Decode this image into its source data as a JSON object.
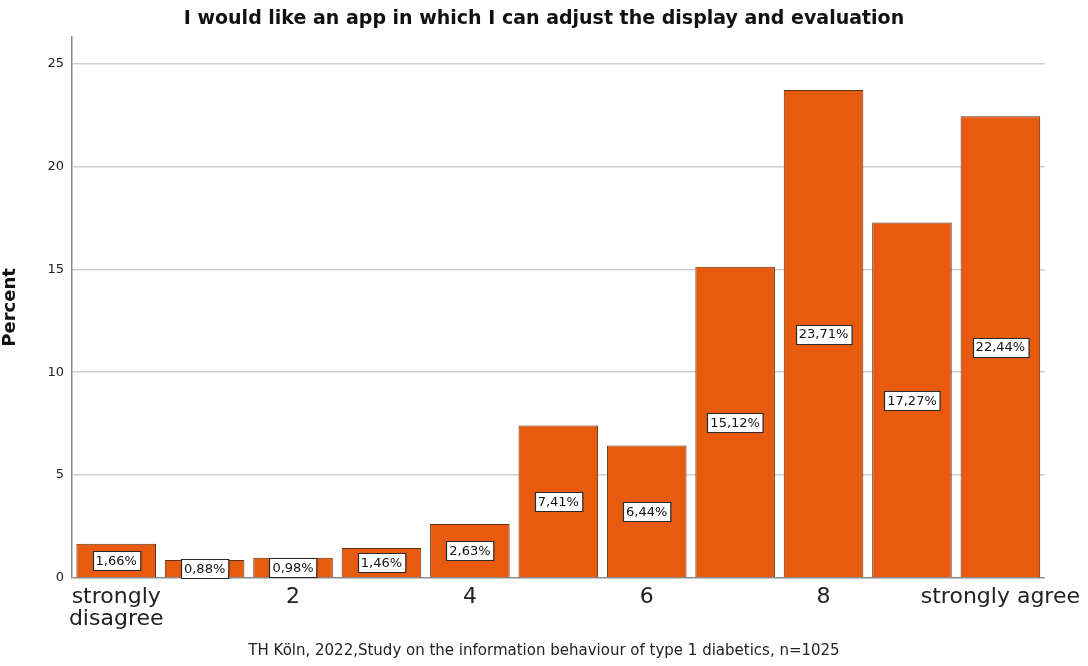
{
  "chart_data": {
    "type": "bar",
    "title": "I would like an app in which I can adjust the display and evaluation",
    "ylabel": "Percent",
    "annotations": [
      "TH Köln, 2022,Study on the information behaviour of type 1 diabetics, n=1025"
    ],
    "categories": [
      "strongly disagree",
      null,
      "2",
      null,
      "4",
      null,
      "6",
      null,
      "8",
      null,
      "strongly agree"
    ],
    "values": [
      1.66,
      0.88,
      0.98,
      1.46,
      2.63,
      7.41,
      6.44,
      15.12,
      23.71,
      17.27,
      22.44
    ],
    "value_labels": [
      "1,66%",
      "0,88%",
      "0,98%",
      "1,46%",
      "2,63%",
      "7,41%",
      "6,44%",
      "15,12%",
      "23,71%",
      "17,27%",
      "22,44%"
    ],
    "color": "#e85a0e",
    "ylim": [
      0,
      26.3
    ],
    "yticks": [
      0,
      5,
      10,
      15,
      20,
      25
    ],
    "grid": "y"
  }
}
